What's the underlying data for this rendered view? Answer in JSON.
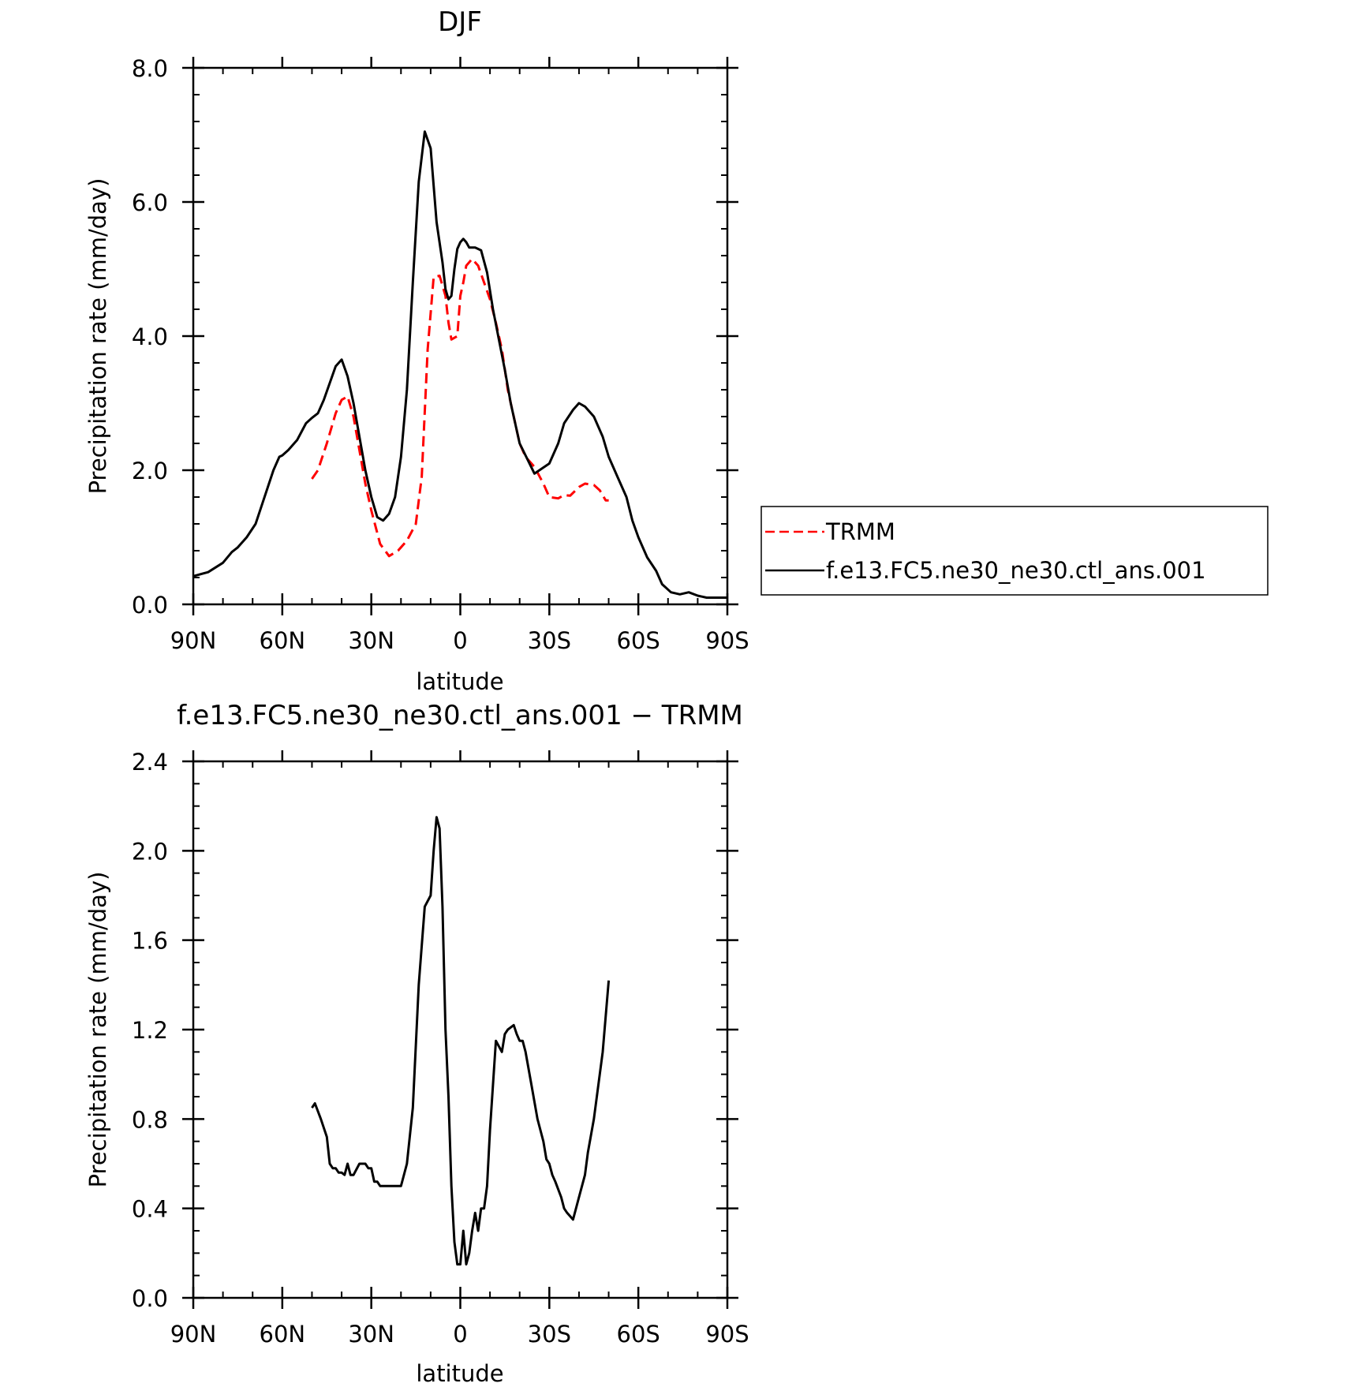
{
  "chart_data": [
    {
      "type": "line",
      "title": "DJF",
      "xlabel": "latitude",
      "ylabel": "Precipitation rate (mm/day)",
      "xlim": [
        90,
        -90
      ],
      "ylim": [
        0,
        8
      ],
      "x_ticks": [
        90,
        60,
        30,
        0,
        -30,
        -60,
        -90
      ],
      "x_tick_labels": [
        "90N",
        "60N",
        "30N",
        "0",
        "30S",
        "60S",
        "90S"
      ],
      "y_ticks": [
        0,
        2,
        4,
        6,
        8
      ],
      "y_tick_labels": [
        "0.0",
        "2.0",
        "4.0",
        "6.0",
        "8.0"
      ],
      "legend": {
        "placement": "outside-right",
        "entries": [
          "TRMM",
          "f.e13.FC5.ne30_ne30.ctl_ans.001"
        ]
      },
      "series": [
        {
          "name": "TRMM",
          "color": "#ff0000",
          "style": "dashed",
          "x": [
            50,
            48,
            45,
            42,
            40,
            38,
            36,
            34,
            32,
            30,
            27,
            24,
            21,
            18,
            15,
            13,
            11,
            9,
            7,
            5,
            4,
            3,
            1,
            0,
            -1,
            -2,
            -4,
            -6,
            -8,
            -10,
            -12,
            -14,
            -16,
            -18,
            -20,
            -22,
            -25,
            -28,
            -30,
            -33,
            -35,
            -37,
            -40,
            -42,
            -45,
            -47,
            -49,
            -50
          ],
          "y": [
            1.87,
            2.0,
            2.4,
            2.85,
            3.05,
            3.1,
            2.8,
            2.3,
            1.8,
            1.4,
            0.9,
            0.72,
            0.8,
            0.95,
            1.2,
            1.9,
            3.8,
            4.88,
            4.9,
            4.6,
            4.2,
            3.95,
            4.0,
            4.6,
            4.8,
            5.05,
            5.15,
            5.05,
            4.8,
            4.55,
            4.2,
            3.8,
            3.2,
            2.8,
            2.4,
            2.2,
            2.05,
            1.8,
            1.6,
            1.58,
            1.63,
            1.62,
            1.75,
            1.8,
            1.78,
            1.7,
            1.55,
            1.55
          ]
        },
        {
          "name": "f.e13.FC5.ne30_ne30.ctl_ans.001",
          "color": "#000000",
          "style": "solid",
          "x": [
            90,
            85,
            80,
            77,
            75,
            72,
            69,
            66,
            63,
            61,
            60,
            58,
            55,
            52,
            50,
            48,
            46,
            44,
            42,
            40,
            38,
            36,
            34,
            32,
            30,
            28,
            26,
            24,
            22,
            20,
            18,
            16,
            14,
            12,
            10,
            8,
            6,
            5,
            4,
            3,
            2,
            1,
            0,
            -1,
            -2,
            -3,
            -5,
            -7,
            -9,
            -11,
            -13,
            -15,
            -17,
            -20,
            -25,
            -30,
            -33,
            -35,
            -38,
            -40,
            -42,
            -45,
            -48,
            -50,
            -53,
            -56,
            -58,
            -60,
            -63,
            -66,
            -68,
            -71,
            -74,
            -77,
            -80,
            -83,
            -86,
            -88,
            -90
          ],
          "y": [
            0.42,
            0.48,
            0.62,
            0.78,
            0.85,
            1.0,
            1.2,
            1.6,
            2.0,
            2.2,
            2.22,
            2.3,
            2.45,
            2.7,
            2.78,
            2.85,
            3.05,
            3.3,
            3.55,
            3.65,
            3.4,
            3.0,
            2.5,
            2.0,
            1.6,
            1.3,
            1.25,
            1.35,
            1.6,
            2.2,
            3.2,
            4.8,
            6.3,
            7.05,
            6.8,
            5.7,
            5.1,
            4.7,
            4.55,
            4.6,
            5.0,
            5.3,
            5.4,
            5.45,
            5.4,
            5.32,
            5.32,
            5.28,
            4.95,
            4.4,
            3.95,
            3.5,
            3.0,
            2.4,
            1.95,
            2.1,
            2.4,
            2.7,
            2.9,
            3.0,
            2.95,
            2.8,
            2.5,
            2.2,
            1.9,
            1.6,
            1.25,
            1.0,
            0.7,
            0.5,
            0.3,
            0.18,
            0.15,
            0.18,
            0.13,
            0.1,
            0.1,
            0.1,
            0.1
          ]
        }
      ]
    },
    {
      "type": "line",
      "title": "f.e13.FC5.ne30_ne30.ctl_ans.001 − TRMM",
      "xlabel": "latitude",
      "ylabel": "Precipitation rate (mm/day)",
      "xlim": [
        90,
        -90
      ],
      "ylim": [
        0,
        2.4
      ],
      "x_ticks": [
        90,
        60,
        30,
        0,
        -30,
        -60,
        -90
      ],
      "x_tick_labels": [
        "90N",
        "60N",
        "30N",
        "0",
        "30S",
        "60S",
        "90S"
      ],
      "y_ticks": [
        0,
        0.4,
        0.8,
        1.2,
        1.6,
        2.0,
        2.4
      ],
      "y_tick_labels": [
        "0.0",
        "0.4",
        "0.8",
        "1.2",
        "1.6",
        "2.0",
        "2.4"
      ],
      "series": [
        {
          "color": "#000000",
          "style": "solid",
          "x": [
            50,
            49,
            47,
            45,
            44,
            43,
            42,
            41,
            40,
            39,
            38,
            37,
            36,
            34,
            33,
            32,
            31,
            30,
            29,
            28,
            27,
            26,
            24,
            22,
            21,
            20,
            18,
            16,
            14,
            12,
            10,
            9,
            8,
            7,
            6,
            5,
            4,
            3,
            2,
            1,
            0,
            -1,
            -2,
            -3,
            -4,
            -5,
            -6,
            -7,
            -8,
            -9,
            -10,
            -12,
            -14,
            -15,
            -16,
            -18,
            -19,
            -20,
            -21,
            -22,
            -24,
            -26,
            -28,
            -29,
            -30,
            -31,
            -32,
            -34,
            -35,
            -36,
            -38,
            -40,
            -42,
            -43,
            -45,
            -48,
            -50
          ],
          "y": [
            0.85,
            0.87,
            0.8,
            0.72,
            0.6,
            0.58,
            0.58,
            0.56,
            0.56,
            0.55,
            0.6,
            0.55,
            0.55,
            0.6,
            0.6,
            0.6,
            0.58,
            0.58,
            0.52,
            0.52,
            0.5,
            0.5,
            0.5,
            0.5,
            0.5,
            0.5,
            0.6,
            0.85,
            1.4,
            1.75,
            1.8,
            2.0,
            2.15,
            2.1,
            1.75,
            1.2,
            0.9,
            0.5,
            0.25,
            0.15,
            0.15,
            0.3,
            0.15,
            0.2,
            0.3,
            0.38,
            0.3,
            0.4,
            0.4,
            0.5,
            0.75,
            1.15,
            1.1,
            1.18,
            1.2,
            1.22,
            1.18,
            1.15,
            1.15,
            1.1,
            0.95,
            0.8,
            0.7,
            0.62,
            0.6,
            0.55,
            0.52,
            0.45,
            0.4,
            0.38,
            0.35,
            0.45,
            0.55,
            0.65,
            0.8,
            1.1,
            1.42
          ]
        }
      ]
    }
  ]
}
